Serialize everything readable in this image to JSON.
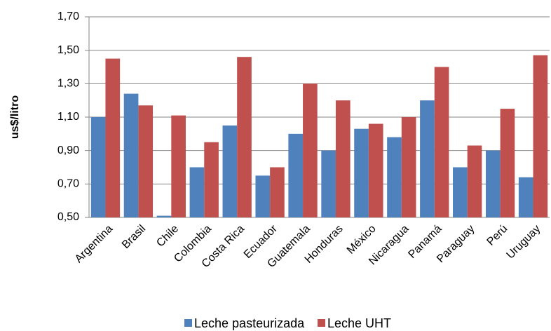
{
  "chart_data": {
    "type": "bar",
    "y_label": "us$/litro",
    "categories": [
      "Argentina",
      "Brasil",
      "Chile",
      "Colombia",
      "Costa Rica",
      "Ecuador",
      "Guatemala",
      "Honduras",
      "México",
      "Nicaragua",
      "Panamá",
      "Paraguay",
      "Perú",
      "Uruguay"
    ],
    "series": [
      {
        "name": "Leche pasteurizada",
        "color": "#4f81bd",
        "values": [
          1.1,
          1.24,
          0.51,
          0.8,
          1.05,
          0.75,
          1.0,
          0.9,
          1.03,
          0.98,
          1.2,
          0.8,
          0.9,
          0.74
        ]
      },
      {
        "name": "Leche UHT",
        "color": "#c0504d",
        "values": [
          1.45,
          1.17,
          1.11,
          0.95,
          1.46,
          0.8,
          1.3,
          1.2,
          1.06,
          1.1,
          1.4,
          0.93,
          1.15,
          1.47
        ]
      }
    ],
    "ylim": [
      0.5,
      1.7
    ],
    "yticks": [
      {
        "value": 0.5,
        "label": "0,50"
      },
      {
        "value": 0.7,
        "label": "0,70"
      },
      {
        "value": 0.9,
        "label": "0,90"
      },
      {
        "value": 1.1,
        "label": "1,10"
      },
      {
        "value": 1.3,
        "label": "1,30"
      },
      {
        "value": 1.5,
        "label": "1,50"
      },
      {
        "value": 1.7,
        "label": "1,70"
      }
    ],
    "grid": true,
    "legend": "bottom"
  }
}
